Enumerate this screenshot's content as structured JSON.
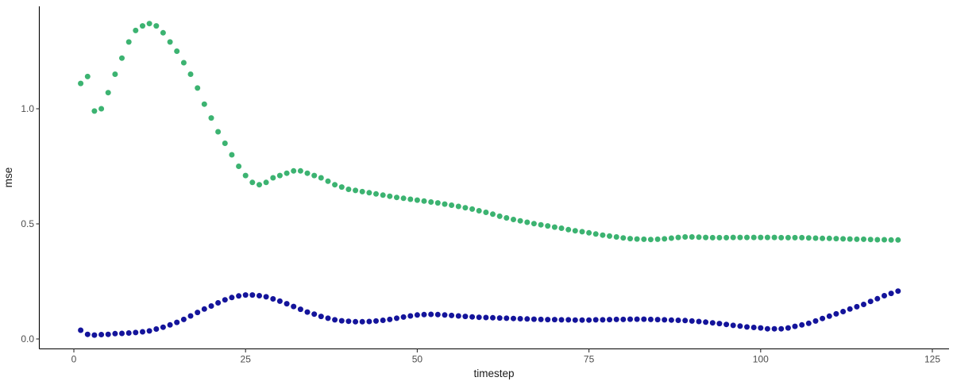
{
  "chart_data": {
    "type": "scatter",
    "title": "",
    "xlabel": "timestep",
    "ylabel": "mse",
    "xlim": [
      -5,
      127.5
    ],
    "ylim": [
      -0.04,
      1.45
    ],
    "grid": false,
    "legend": "none",
    "background_color": "#FFFFFF",
    "axis_color": "#000000",
    "tick_label_color": "#4D4D4D",
    "x_ticks": [
      {
        "label": "0",
        "value": 0
      },
      {
        "label": "25",
        "value": 25
      },
      {
        "label": "50",
        "value": 50
      },
      {
        "label": "75",
        "value": 75
      },
      {
        "label": "100",
        "value": 100
      },
      {
        "label": "125",
        "value": 125
      }
    ],
    "y_ticks": [
      {
        "label": "0.0",
        "value": 0.0
      },
      {
        "label": "0.5",
        "value": 0.5
      },
      {
        "label": "1.0",
        "value": 1.0
      }
    ],
    "series": [
      {
        "name": "series_green",
        "color": "#3CB371",
        "x": [
          1,
          2,
          3,
          4,
          5,
          6,
          7,
          8,
          9,
          10,
          11,
          12,
          13,
          14,
          15,
          16,
          17,
          18,
          19,
          20,
          21,
          22,
          23,
          24,
          25,
          26,
          27,
          28,
          29,
          30,
          31,
          32,
          33,
          34,
          35,
          36,
          37,
          38,
          39,
          40,
          41,
          42,
          43,
          44,
          45,
          46,
          47,
          48,
          49,
          50,
          51,
          52,
          53,
          54,
          55,
          56,
          57,
          58,
          59,
          60,
          61,
          62,
          63,
          64,
          65,
          66,
          67,
          68,
          69,
          70,
          71,
          72,
          73,
          74,
          75,
          76,
          77,
          78,
          79,
          80,
          81,
          82,
          83,
          84,
          85,
          86,
          87,
          88,
          89,
          90,
          91,
          92,
          93,
          94,
          95,
          96,
          97,
          98,
          99,
          100,
          101,
          102,
          103,
          104,
          105,
          106,
          107,
          108,
          109,
          110,
          111,
          112,
          113,
          114,
          115,
          116,
          117,
          118,
          119,
          120
        ],
        "values": [
          1.11,
          1.14,
          0.99,
          1.0,
          1.07,
          1.15,
          1.22,
          1.29,
          1.34,
          1.36,
          1.37,
          1.36,
          1.33,
          1.29,
          1.25,
          1.2,
          1.15,
          1.09,
          1.02,
          0.96,
          0.9,
          0.85,
          0.8,
          0.75,
          0.71,
          0.68,
          0.67,
          0.68,
          0.7,
          0.71,
          0.72,
          0.73,
          0.73,
          0.72,
          0.71,
          0.7,
          0.685,
          0.67,
          0.66,
          0.65,
          0.645,
          0.64,
          0.635,
          0.63,
          0.625,
          0.62,
          0.615,
          0.611,
          0.607,
          0.603,
          0.599,
          0.595,
          0.591,
          0.586,
          0.581,
          0.576,
          0.57,
          0.564,
          0.557,
          0.55,
          0.542,
          0.533,
          0.526,
          0.519,
          0.513,
          0.507,
          0.501,
          0.496,
          0.491,
          0.486,
          0.481,
          0.475,
          0.47,
          0.466,
          0.461,
          0.456,
          0.451,
          0.447,
          0.443,
          0.439,
          0.436,
          0.434,
          0.433,
          0.432,
          0.433,
          0.435,
          0.438,
          0.441,
          0.443,
          0.443,
          0.442,
          0.441,
          0.44,
          0.44,
          0.44,
          0.441,
          0.441,
          0.441,
          0.441,
          0.441,
          0.441,
          0.441,
          0.44,
          0.44,
          0.44,
          0.44,
          0.439,
          0.438,
          0.437,
          0.437,
          0.436,
          0.435,
          0.434,
          0.433,
          0.433,
          0.432,
          0.431,
          0.431,
          0.43,
          0.43
        ]
      },
      {
        "name": "series_navy",
        "color": "#14149B",
        "x": [
          1,
          2,
          3,
          4,
          5,
          6,
          7,
          8,
          9,
          10,
          11,
          12,
          13,
          14,
          15,
          16,
          17,
          18,
          19,
          20,
          21,
          22,
          23,
          24,
          25,
          26,
          27,
          28,
          29,
          30,
          31,
          32,
          33,
          34,
          35,
          36,
          37,
          38,
          39,
          40,
          41,
          42,
          43,
          44,
          45,
          46,
          47,
          48,
          49,
          50,
          51,
          52,
          53,
          54,
          55,
          56,
          57,
          58,
          59,
          60,
          61,
          62,
          63,
          64,
          65,
          66,
          67,
          68,
          69,
          70,
          71,
          72,
          73,
          74,
          75,
          76,
          77,
          78,
          79,
          80,
          81,
          82,
          83,
          84,
          85,
          86,
          87,
          88,
          89,
          90,
          91,
          92,
          93,
          94,
          95,
          96,
          97,
          98,
          99,
          100,
          101,
          102,
          103,
          104,
          105,
          106,
          107,
          108,
          109,
          110,
          111,
          112,
          113,
          114,
          115,
          116,
          117,
          118,
          119,
          120
        ],
        "values": [
          0.038,
          0.02,
          0.017,
          0.019,
          0.02,
          0.023,
          0.024,
          0.026,
          0.028,
          0.031,
          0.035,
          0.043,
          0.051,
          0.061,
          0.072,
          0.085,
          0.1,
          0.115,
          0.13,
          0.143,
          0.157,
          0.17,
          0.18,
          0.187,
          0.191,
          0.191,
          0.188,
          0.183,
          0.174,
          0.164,
          0.153,
          0.141,
          0.129,
          0.117,
          0.108,
          0.098,
          0.09,
          0.083,
          0.079,
          0.077,
          0.075,
          0.075,
          0.076,
          0.078,
          0.081,
          0.085,
          0.09,
          0.095,
          0.1,
          0.104,
          0.106,
          0.107,
          0.106,
          0.104,
          0.102,
          0.1,
          0.098,
          0.096,
          0.094,
          0.093,
          0.092,
          0.091,
          0.09,
          0.089,
          0.088,
          0.087,
          0.086,
          0.085,
          0.084,
          0.084,
          0.083,
          0.083,
          0.082,
          0.082,
          0.082,
          0.083,
          0.083,
          0.084,
          0.085,
          0.085,
          0.086,
          0.086,
          0.086,
          0.085,
          0.084,
          0.083,
          0.082,
          0.081,
          0.08,
          0.078,
          0.076,
          0.073,
          0.07,
          0.067,
          0.063,
          0.059,
          0.056,
          0.052,
          0.05,
          0.048,
          0.044,
          0.044,
          0.044,
          0.048,
          0.055,
          0.061,
          0.068,
          0.078,
          0.089,
          0.099,
          0.109,
          0.119,
          0.13,
          0.14,
          0.15,
          0.163,
          0.175,
          0.188,
          0.198,
          0.208
        ]
      }
    ]
  }
}
